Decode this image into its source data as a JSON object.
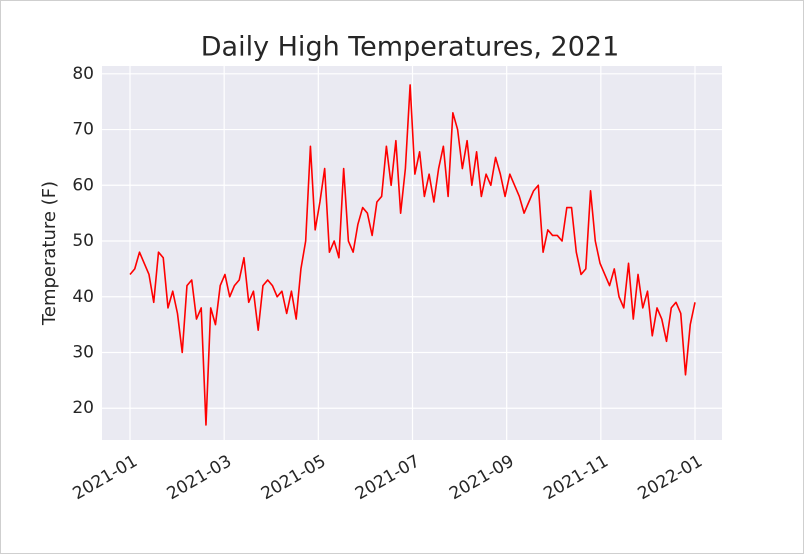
{
  "chart_data": {
    "type": "line",
    "title": "Daily High Temperatures, 2021",
    "y_label": "Temperature (F)",
    "xlim": [
      "2021-01",
      "2022-01"
    ],
    "xticks": [
      "2021-01",
      "2021-03",
      "2021-05",
      "2021-07",
      "2021-09",
      "2021-11",
      "2022-01"
    ],
    "ylim": [
      14.3,
      81.4
    ],
    "yticks": [
      20,
      30,
      40,
      50,
      60,
      70,
      80
    ],
    "grid": true,
    "series": [
      {
        "color": "#ff0000",
        "values": [
          44,
          45,
          48,
          46,
          44,
          39,
          48,
          47,
          38,
          41,
          37,
          30,
          42,
          43,
          36,
          38,
          17,
          38,
          35,
          42,
          44,
          40,
          42,
          43,
          47,
          39,
          41,
          34,
          42,
          43,
          42,
          40,
          41,
          37,
          41,
          36,
          45,
          50,
          67,
          52,
          57,
          63,
          48,
          50,
          47,
          63,
          50,
          48,
          53,
          56,
          55,
          51,
          57,
          58,
          67,
          60,
          68,
          55,
          63,
          78,
          62,
          66,
          58,
          62,
          57,
          63,
          67,
          58,
          73,
          70,
          63,
          68,
          60,
          66,
          58,
          62,
          60,
          65,
          62,
          58,
          62,
          60,
          58,
          55,
          57,
          59,
          60,
          48,
          52,
          51,
          51,
          50,
          56,
          56,
          48,
          44,
          45,
          59,
          50,
          46,
          44,
          42,
          45,
          40,
          38,
          46,
          36,
          44,
          38,
          41,
          33,
          38,
          36,
          32,
          38,
          39,
          37,
          26,
          35,
          39
        ]
      }
    ]
  }
}
